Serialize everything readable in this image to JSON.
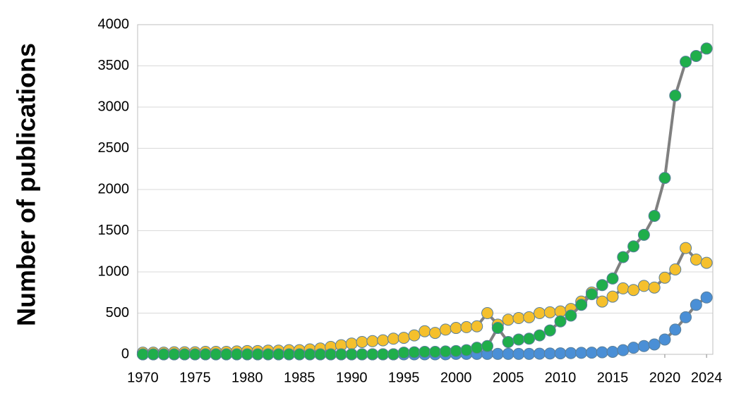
{
  "chart_data": {
    "type": "line",
    "y_label": "Number of publications",
    "x": [
      1970,
      1971,
      1972,
      1973,
      1974,
      1975,
      1976,
      1977,
      1978,
      1979,
      1980,
      1981,
      1982,
      1983,
      1984,
      1985,
      1986,
      1987,
      1988,
      1989,
      1990,
      1991,
      1992,
      1993,
      1994,
      1995,
      1996,
      1997,
      1998,
      1999,
      2000,
      2001,
      2002,
      2003,
      2004,
      2005,
      2006,
      2007,
      2008,
      2009,
      2010,
      2011,
      2012,
      2013,
      2014,
      2015,
      2016,
      2017,
      2018,
      2019,
      2020,
      2021,
      2022,
      2023,
      2024
    ],
    "series": [
      {
        "color": "#4a8fd6",
        "values": [
          0,
          0,
          0,
          0,
          0,
          0,
          0,
          0,
          0,
          0,
          0,
          0,
          0,
          0,
          0,
          0,
          0,
          0,
          0,
          0,
          0,
          0,
          0,
          0,
          0,
          0,
          0,
          0,
          0,
          0,
          5,
          5,
          5,
          5,
          5,
          5,
          5,
          5,
          8,
          10,
          12,
          15,
          18,
          20,
          25,
          30,
          50,
          80,
          100,
          120,
          180,
          300,
          450,
          600,
          690
        ]
      },
      {
        "color": "#f5c02c",
        "values": [
          20,
          20,
          20,
          25,
          25,
          25,
          30,
          30,
          30,
          35,
          40,
          40,
          45,
          45,
          50,
          50,
          60,
          70,
          90,
          110,
          130,
          150,
          160,
          170,
          190,
          200,
          230,
          280,
          260,
          300,
          320,
          330,
          340,
          500,
          360,
          420,
          440,
          450,
          500,
          510,
          520,
          550,
          640,
          750,
          640,
          700,
          800,
          780,
          830,
          810,
          930,
          1030,
          1290,
          1150,
          1110
        ]
      },
      {
        "color": "#1fae4b",
        "values": [
          0,
          0,
          0,
          0,
          0,
          0,
          0,
          0,
          0,
          0,
          0,
          0,
          0,
          0,
          0,
          0,
          0,
          0,
          0,
          0,
          0,
          0,
          0,
          0,
          0,
          20,
          25,
          30,
          30,
          35,
          40,
          50,
          80,
          100,
          320,
          150,
          180,
          190,
          230,
          290,
          400,
          470,
          600,
          730,
          840,
          920,
          1180,
          1310,
          1450,
          1680,
          2140,
          3140,
          3550,
          3620,
          3710
        ]
      }
    ],
    "line_color": "#808080",
    "xlim": [
      1969.5,
      2024.6
    ],
    "xticks": [
      1970,
      1975,
      1980,
      1985,
      1990,
      1995,
      2000,
      2005,
      2010,
      2015,
      2020,
      2024
    ],
    "ylim": [
      0,
      4000
    ],
    "yticks": [
      0,
      500,
      1000,
      1500,
      2000,
      2500,
      3000,
      3500,
      4000
    ],
    "grid": true
  }
}
